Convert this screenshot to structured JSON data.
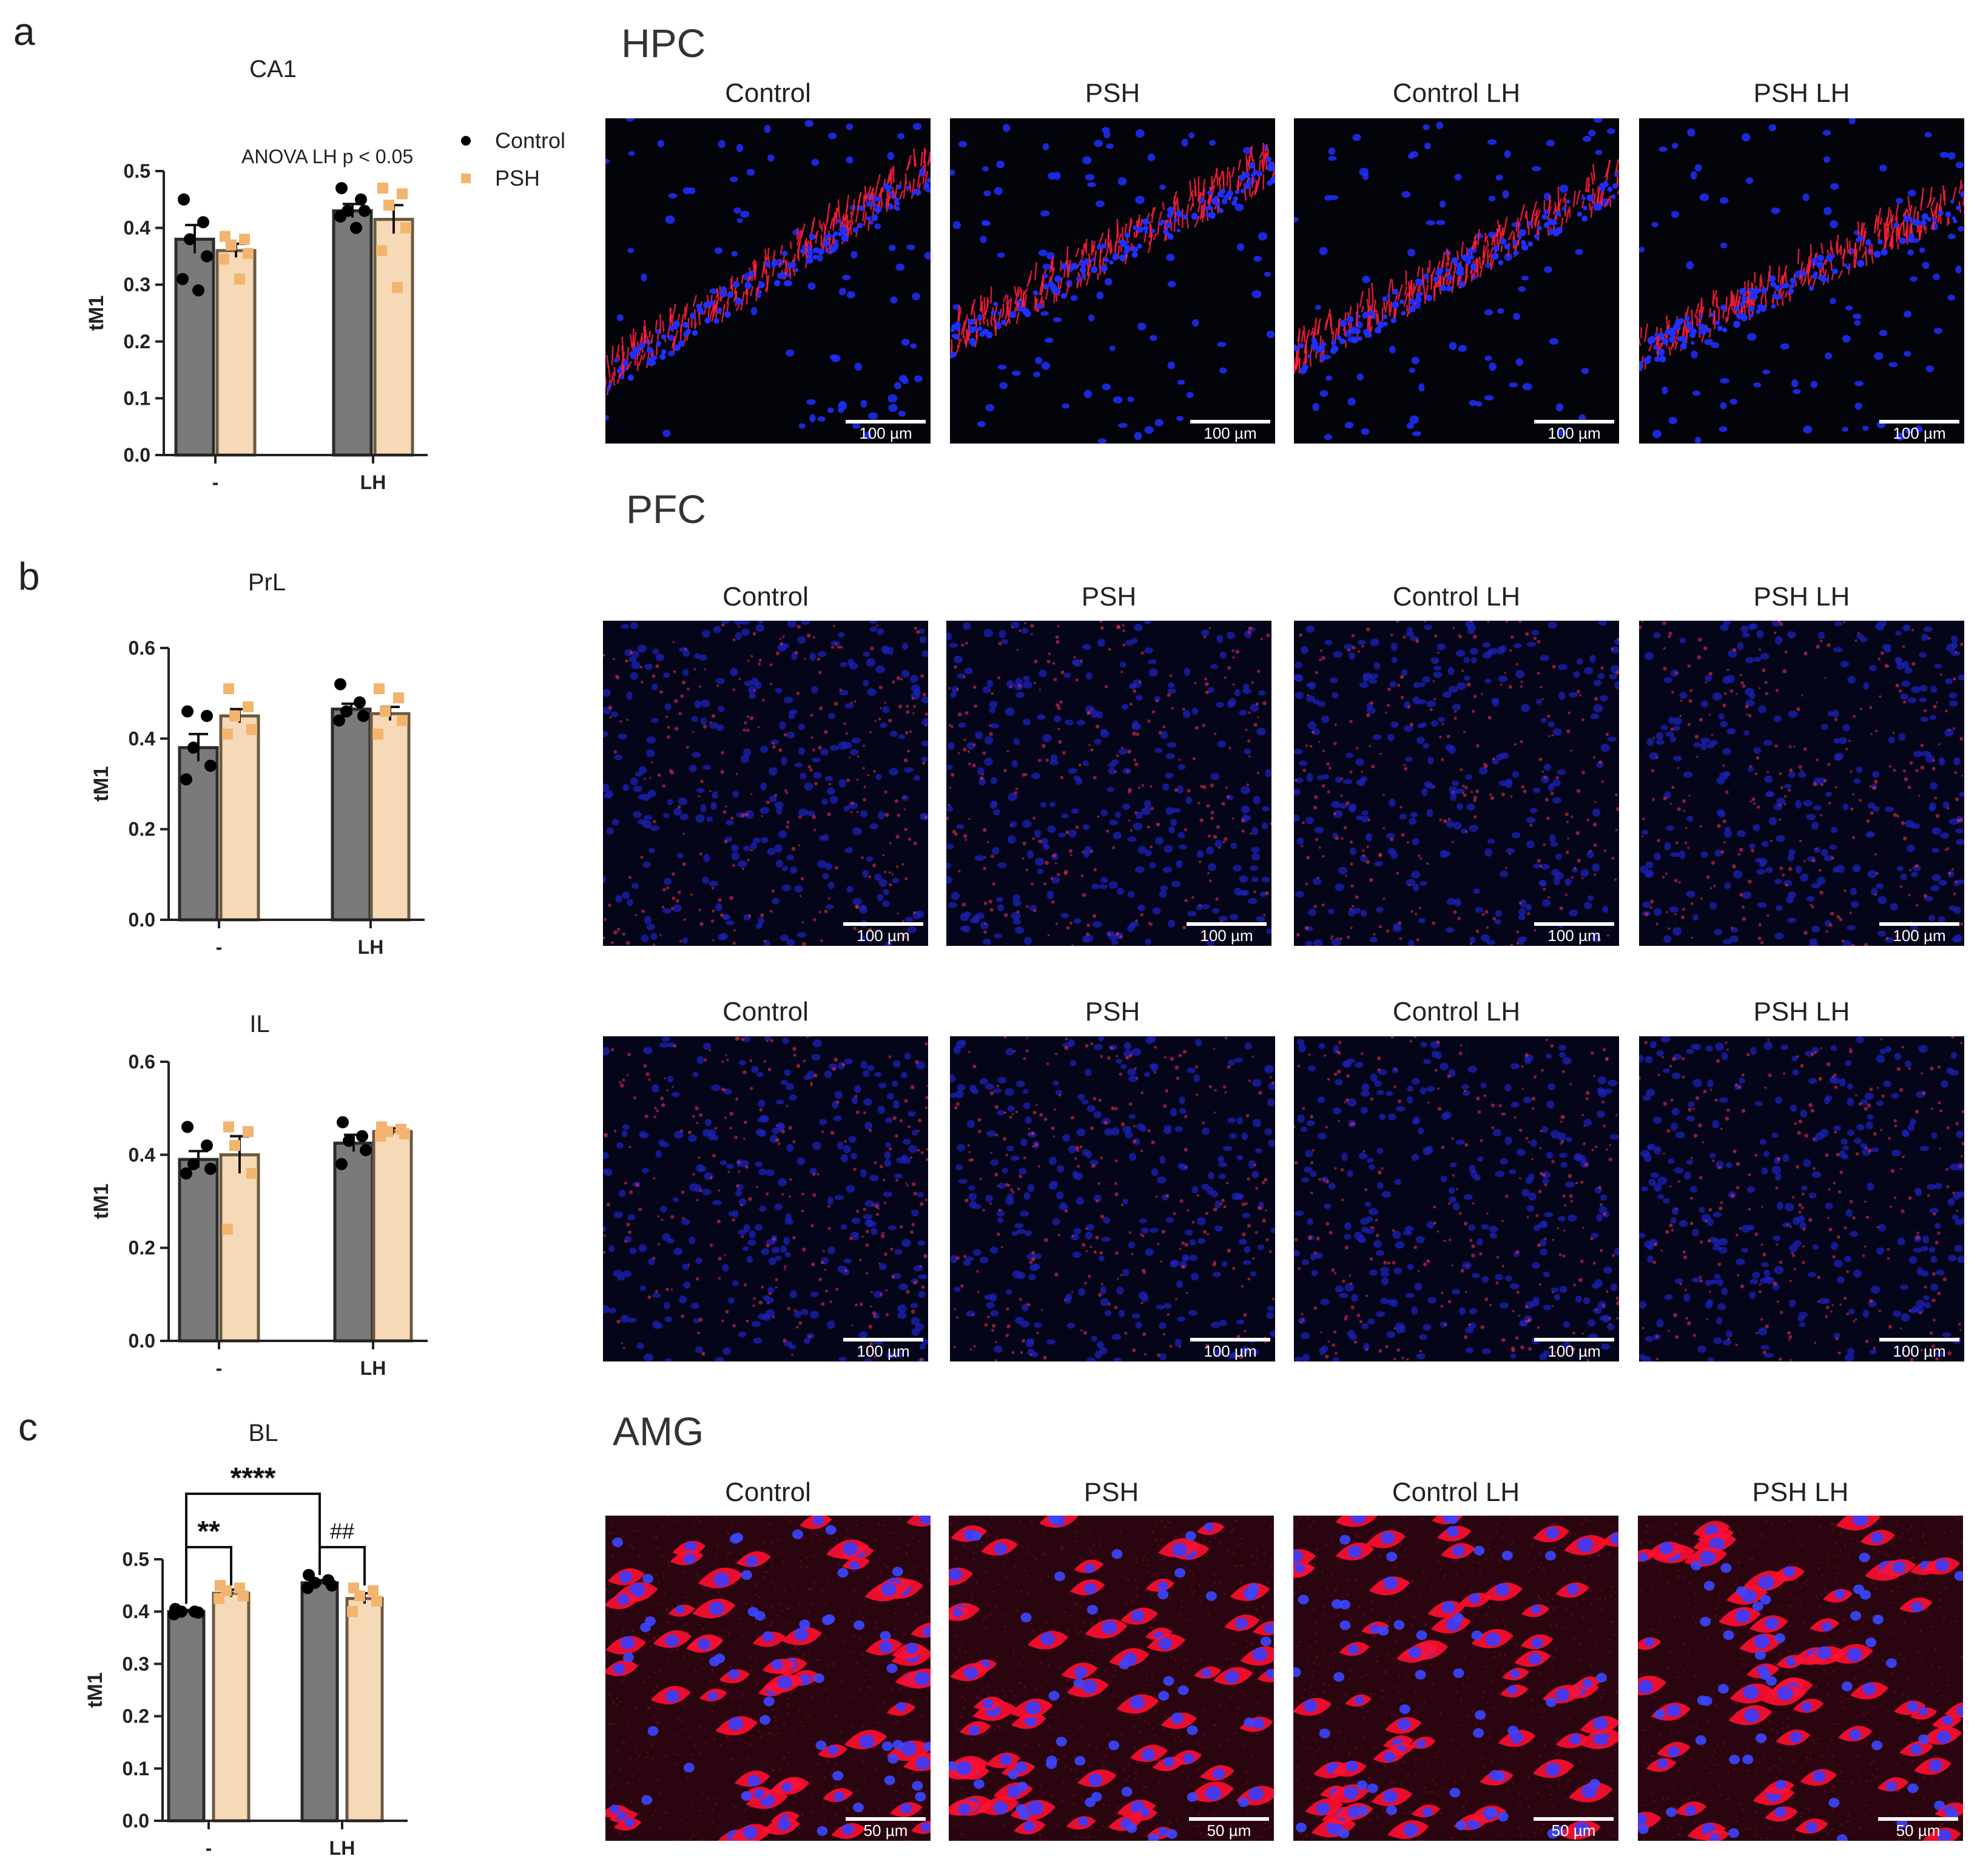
{
  "panel_letters": {
    "a": "a",
    "b": "b",
    "c": "c"
  },
  "regions": {
    "hpc": "HPC",
    "pfc": "PFC",
    "amg": "AMG"
  },
  "image_labels": [
    "Control",
    "PSH",
    "Control LH",
    "PSH LH"
  ],
  "scalebars": {
    "small": "100 µm",
    "large": "50 µm"
  },
  "legend": {
    "control": "Control",
    "psh": "PSH"
  },
  "colors": {
    "control_bar": "#7a7a7a",
    "psh_bar": "#f6d9b6",
    "control_dot": "#000000",
    "psh_dot": "#f2b46e",
    "bar_edge": "#4a3b2a",
    "nuclei": "#1f2fff",
    "signal": "#ff1f3a"
  },
  "annotations": {
    "anova": "ANOVA LH p < 0.05",
    "stars4": "****",
    "stars2": "**",
    "hash2": "##"
  },
  "chart_data": [
    {
      "type": "bar",
      "title": "CA1",
      "ylabel": "tM1",
      "xlabel": "",
      "categories": [
        "-",
        "LH"
      ],
      "ylim": [
        0,
        0.5
      ],
      "yticks": [
        "0.0",
        "0.1",
        "0.2",
        "0.3",
        "0.4",
        "0.5"
      ],
      "series": [
        {
          "name": "Control",
          "values": [
            0.38,
            0.43
          ],
          "sem": [
            0.025,
            0.012
          ],
          "points": [
            [
              0.45,
              0.41,
              0.38,
              0.35,
              0.31,
              0.29
            ],
            [
              0.47,
              0.45,
              0.43,
              0.43,
              0.42,
              0.4
            ]
          ]
        },
        {
          "name": "PSH",
          "values": [
            0.36,
            0.415
          ],
          "sem": [
            0.012,
            0.025
          ],
          "points": [
            [
              0.385,
              0.38,
              0.37,
              0.355,
              0.345,
              0.31
            ],
            [
              0.47,
              0.46,
              0.44,
              0.4,
              0.36,
              0.295
            ]
          ]
        }
      ]
    },
    {
      "type": "bar",
      "title": "PrL",
      "ylabel": "tM1",
      "xlabel": "",
      "categories": [
        "-",
        "LH"
      ],
      "ylim": [
        0,
        0.6
      ],
      "yticks": [
        "0.0",
        "0.2",
        "0.4",
        "0.6"
      ],
      "series": [
        {
          "name": "Control",
          "values": [
            0.38,
            0.465
          ],
          "sem": [
            0.03,
            0.012
          ],
          "points": [
            [
              0.46,
              0.45,
              0.38,
              0.34,
              0.31
            ],
            [
              0.52,
              0.48,
              0.46,
              0.45,
              0.44
            ]
          ]
        },
        {
          "name": "PSH",
          "values": [
            0.45,
            0.455
          ],
          "sem": [
            0.015,
            0.015
          ],
          "points": [
            [
              0.51,
              0.47,
              0.45,
              0.42,
              0.41
            ],
            [
              0.51,
              0.49,
              0.46,
              0.44,
              0.41
            ]
          ]
        }
      ]
    },
    {
      "type": "bar",
      "title": "IL",
      "ylabel": "tM1",
      "xlabel": "",
      "categories": [
        "-",
        "LH"
      ],
      "ylim": [
        0,
        0.6
      ],
      "yticks": [
        "0.0",
        "0.2",
        "0.4",
        "0.6"
      ],
      "series": [
        {
          "name": "Control",
          "values": [
            0.39,
            0.425
          ],
          "sem": [
            0.018,
            0.018
          ],
          "points": [
            [
              0.46,
              0.42,
              0.38,
              0.37,
              0.36
            ],
            [
              0.47,
              0.44,
              0.43,
              0.41,
              0.38
            ]
          ]
        },
        {
          "name": "PSH",
          "values": [
            0.4,
            0.45
          ],
          "sem": [
            0.04,
            0.007
          ],
          "points": [
            [
              0.46,
              0.45,
              0.42,
              0.36,
              0.24
            ],
            [
              0.46,
              0.455,
              0.45,
              0.445,
              0.44
            ]
          ]
        }
      ]
    },
    {
      "type": "bar",
      "title": "BL",
      "ylabel": "tM1",
      "xlabel": "",
      "categories": [
        "-",
        "LH"
      ],
      "ylim": [
        0,
        0.5
      ],
      "yticks": [
        "0.0",
        "0.1",
        "0.2",
        "0.3",
        "0.4",
        "0.5"
      ],
      "series": [
        {
          "name": "Control",
          "values": [
            0.4,
            0.455
          ],
          "sem": [
            0.003,
            0.005
          ],
          "points": [
            [
              0.405,
              0.4,
              0.4,
              0.398,
              0.395
            ],
            [
              0.47,
              0.46,
              0.455,
              0.45,
              0.445
            ]
          ]
        },
        {
          "name": "PSH",
          "values": [
            0.435,
            0.425
          ],
          "sem": [
            0.007,
            0.01
          ],
          "points": [
            [
              0.45,
              0.445,
              0.44,
              0.43,
              0.425
            ],
            [
              0.445,
              0.44,
              0.43,
              0.42,
              0.4
            ]
          ]
        }
      ]
    }
  ]
}
